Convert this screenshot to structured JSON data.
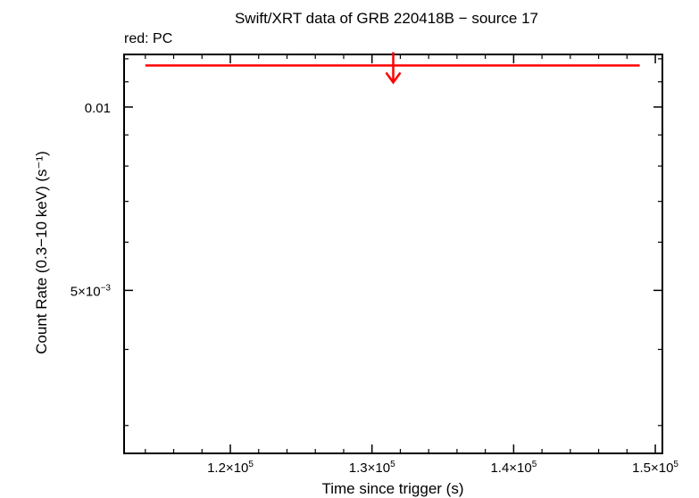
{
  "chart_data": {
    "type": "scatter",
    "title": "Swift/XRT data of GRB 220418B − source 17",
    "subtitle": "red: PC",
    "xlabel": "Time since trigger (s)",
    "ylabel": "Count Rate (0.3−10 keV) (s⁻¹)",
    "x_scale": "linear",
    "y_scale": "log",
    "xlim": [
      112500,
      150500
    ],
    "ylim": [
      0.0027,
      0.0122
    ],
    "x_ticks": [
      {
        "value": 120000,
        "mant": "1.2×10",
        "exp": "5"
      },
      {
        "value": 130000,
        "mant": "1.3×10",
        "exp": "5"
      },
      {
        "value": 140000,
        "mant": "1.4×10",
        "exp": "5"
      },
      {
        "value": 150000,
        "mant": "1.5×10",
        "exp": "5"
      }
    ],
    "y_ticks": [
      {
        "value": 0.01,
        "mant": "0.01",
        "exp": ""
      },
      {
        "value": 0.005,
        "mant": "5×10",
        "exp": "−3"
      }
    ],
    "grid": false,
    "series": [
      {
        "color": "#ff0000",
        "points": [
          {
            "x": 131500,
            "x_err_low": 17500,
            "x_err_high": 17400,
            "y": 0.0117,
            "upper_limit": true
          }
        ]
      }
    ]
  }
}
